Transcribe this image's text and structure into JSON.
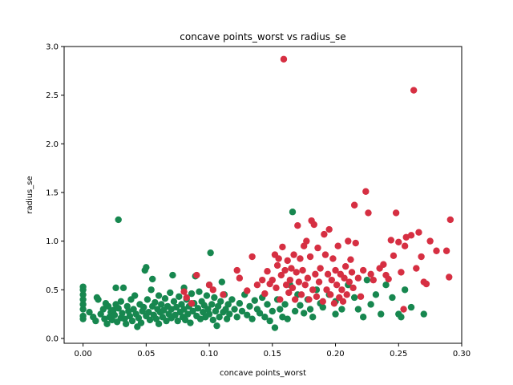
{
  "chart_data": {
    "type": "scatter",
    "title": "concave points_worst vs radius_se",
    "xlabel": "concave points_worst",
    "ylabel": "radius_se",
    "xlim": [
      -0.015,
      0.3
    ],
    "ylim": [
      -0.05,
      3.0
    ],
    "xticks": [
      "0.00",
      "0.05",
      "0.10",
      "0.15",
      "0.20",
      "0.25",
      "0.30"
    ],
    "yticks": [
      "0.0",
      "0.5",
      "1.0",
      "1.5",
      "2.0",
      "2.5",
      "3.0"
    ],
    "grid": false,
    "legend": "none",
    "series": [
      {
        "color": "#17874f",
        "points": [
          [
            0.0,
            0.2
          ],
          [
            0.0,
            0.23
          ],
          [
            0.0,
            0.3
          ],
          [
            0.0,
            0.35
          ],
          [
            0.0,
            0.4
          ],
          [
            0.0,
            0.45
          ],
          [
            0.0,
            0.5
          ],
          [
            0.0,
            0.53
          ],
          [
            0.005,
            0.27
          ],
          [
            0.008,
            0.22
          ],
          [
            0.01,
            0.18
          ],
          [
            0.011,
            0.42
          ],
          [
            0.012,
            0.4
          ],
          [
            0.014,
            0.25
          ],
          [
            0.016,
            0.3
          ],
          [
            0.017,
            0.2
          ],
          [
            0.018,
            0.36
          ],
          [
            0.019,
            0.15
          ],
          [
            0.02,
            0.33
          ],
          [
            0.021,
            0.22
          ],
          [
            0.022,
            0.27
          ],
          [
            0.023,
            0.19
          ],
          [
            0.024,
            0.29
          ],
          [
            0.025,
            0.24
          ],
          [
            0.026,
            0.52
          ],
          [
            0.026,
            0.35
          ],
          [
            0.027,
            0.17
          ],
          [
            0.028,
            0.31
          ],
          [
            0.028,
            1.22
          ],
          [
            0.03,
            0.21
          ],
          [
            0.03,
            0.38
          ],
          [
            0.031,
            0.26
          ],
          [
            0.032,
            0.52
          ],
          [
            0.033,
            0.2
          ],
          [
            0.034,
            0.15
          ],
          [
            0.035,
            0.33
          ],
          [
            0.036,
            0.28
          ],
          [
            0.037,
            0.23
          ],
          [
            0.038,
            0.4
          ],
          [
            0.039,
            0.18
          ],
          [
            0.04,
            0.3
          ],
          [
            0.041,
            0.44
          ],
          [
            0.042,
            0.25
          ],
          [
            0.043,
            0.12
          ],
          [
            0.044,
            0.21
          ],
          [
            0.045,
            0.35
          ],
          [
            0.046,
            0.16
          ],
          [
            0.047,
            0.28
          ],
          [
            0.048,
            0.32
          ],
          [
            0.049,
            0.7
          ],
          [
            0.05,
            0.73
          ],
          [
            0.05,
            0.23
          ],
          [
            0.051,
            0.4
          ],
          [
            0.052,
            0.27
          ],
          [
            0.053,
            0.19
          ],
          [
            0.054,
            0.5
          ],
          [
            0.055,
            0.33
          ],
          [
            0.055,
            0.61
          ],
          [
            0.056,
            0.24
          ],
          [
            0.057,
            0.37
          ],
          [
            0.058,
            0.2
          ],
          [
            0.059,
            0.3
          ],
          [
            0.06,
            0.44
          ],
          [
            0.06,
            0.15
          ],
          [
            0.061,
            0.27
          ],
          [
            0.062,
            0.35
          ],
          [
            0.063,
            0.22
          ],
          [
            0.064,
            0.29
          ],
          [
            0.065,
            0.41
          ],
          [
            0.066,
            0.18
          ],
          [
            0.067,
            0.33
          ],
          [
            0.068,
            0.25
          ],
          [
            0.069,
            0.47
          ],
          [
            0.07,
            0.3
          ],
          [
            0.07,
            0.21
          ],
          [
            0.071,
            0.65
          ],
          [
            0.072,
            0.38
          ],
          [
            0.073,
            0.24
          ],
          [
            0.074,
            0.32
          ],
          [
            0.075,
            0.18
          ],
          [
            0.076,
            0.43
          ],
          [
            0.077,
            0.27
          ],
          [
            0.078,
            0.35
          ],
          [
            0.079,
            0.22
          ],
          [
            0.08,
            0.52
          ],
          [
            0.08,
            0.3
          ],
          [
            0.081,
            0.19
          ],
          [
            0.082,
            0.4
          ],
          [
            0.083,
            0.25
          ],
          [
            0.084,
            0.33
          ],
          [
            0.085,
            0.16
          ],
          [
            0.086,
            0.46
          ],
          [
            0.087,
            0.28
          ],
          [
            0.088,
            0.36
          ],
          [
            0.089,
            0.64
          ],
          [
            0.09,
            0.23
          ],
          [
            0.091,
            0.31
          ],
          [
            0.092,
            0.48
          ],
          [
            0.093,
            0.2
          ],
          [
            0.094,
            0.38
          ],
          [
            0.095,
            0.27
          ],
          [
            0.096,
            0.34
          ],
          [
            0.097,
            0.22
          ],
          [
            0.098,
            0.44
          ],
          [
            0.099,
            0.3
          ],
          [
            0.1,
            0.25
          ],
          [
            0.1,
            0.55
          ],
          [
            0.101,
            0.88
          ],
          [
            0.102,
            0.35
          ],
          [
            0.103,
            0.19
          ],
          [
            0.104,
            0.42
          ],
          [
            0.105,
            0.28
          ],
          [
            0.106,
            0.13
          ],
          [
            0.107,
            0.33
          ],
          [
            0.108,
            0.22
          ],
          [
            0.109,
            0.38
          ],
          [
            0.11,
            0.58
          ],
          [
            0.111,
            0.27
          ],
          [
            0.112,
            0.45
          ],
          [
            0.113,
            0.3
          ],
          [
            0.114,
            0.2
          ],
          [
            0.115,
            0.35
          ],
          [
            0.116,
            0.25
          ],
          [
            0.118,
            0.4
          ],
          [
            0.12,
            0.3
          ],
          [
            0.122,
            0.22
          ],
          [
            0.124,
            0.36
          ],
          [
            0.126,
            0.28
          ],
          [
            0.128,
            0.45
          ],
          [
            0.13,
            0.24
          ],
          [
            0.132,
            0.33
          ],
          [
            0.134,
            0.2
          ],
          [
            0.136,
            0.39
          ],
          [
            0.138,
            0.3
          ],
          [
            0.14,
            0.26
          ],
          [
            0.142,
            0.42
          ],
          [
            0.144,
            0.22
          ],
          [
            0.146,
            0.35
          ],
          [
            0.148,
            0.18
          ],
          [
            0.15,
            0.28
          ],
          [
            0.152,
            0.11
          ],
          [
            0.154,
            0.4
          ],
          [
            0.156,
            0.3
          ],
          [
            0.158,
            0.22
          ],
          [
            0.16,
            0.35
          ],
          [
            0.162,
            0.2
          ],
          [
            0.164,
            0.55
          ],
          [
            0.166,
            1.3
          ],
          [
            0.168,
            0.28
          ],
          [
            0.17,
            0.45
          ],
          [
            0.172,
            0.34
          ],
          [
            0.175,
            0.26
          ],
          [
            0.178,
            0.4
          ],
          [
            0.18,
            0.3
          ],
          [
            0.182,
            0.22
          ],
          [
            0.185,
            0.5
          ],
          [
            0.188,
            0.36
          ],
          [
            0.19,
            0.32
          ],
          [
            0.195,
            0.45
          ],
          [
            0.2,
            0.25
          ],
          [
            0.2,
            0.38
          ],
          [
            0.205,
            0.3
          ],
          [
            0.21,
            0.55
          ],
          [
            0.215,
            0.42
          ],
          [
            0.218,
            0.3
          ],
          [
            0.222,
            0.22
          ],
          [
            0.225,
            0.6
          ],
          [
            0.228,
            0.35
          ],
          [
            0.232,
            0.45
          ],
          [
            0.236,
            0.25
          ],
          [
            0.24,
            0.55
          ],
          [
            0.245,
            0.42
          ],
          [
            0.25,
            0.25
          ],
          [
            0.252,
            0.22
          ],
          [
            0.255,
            0.5
          ],
          [
            0.26,
            0.32
          ],
          [
            0.27,
            0.25
          ]
        ]
      },
      {
        "color": "#d62f42",
        "points": [
          [
            0.08,
            0.48
          ],
          [
            0.082,
            0.42
          ],
          [
            0.086,
            0.36
          ],
          [
            0.09,
            0.65
          ],
          [
            0.1,
            0.55
          ],
          [
            0.103,
            0.5
          ],
          [
            0.111,
            0.45
          ],
          [
            0.122,
            0.7
          ],
          [
            0.124,
            0.62
          ],
          [
            0.13,
            0.49
          ],
          [
            0.134,
            0.84
          ],
          [
            0.138,
            0.55
          ],
          [
            0.142,
            0.6
          ],
          [
            0.144,
            0.46
          ],
          [
            0.146,
            0.69
          ],
          [
            0.148,
            0.56
          ],
          [
            0.15,
            0.6
          ],
          [
            0.152,
            0.86
          ],
          [
            0.153,
            0.52
          ],
          [
            0.154,
            0.75
          ],
          [
            0.155,
            0.82
          ],
          [
            0.156,
            0.4
          ],
          [
            0.157,
            0.65
          ],
          [
            0.158,
            0.94
          ],
          [
            0.159,
            2.87
          ],
          [
            0.16,
            0.7
          ],
          [
            0.161,
            0.55
          ],
          [
            0.162,
            0.8
          ],
          [
            0.163,
            0.47
          ],
          [
            0.164,
            0.6
          ],
          [
            0.165,
            0.72
          ],
          [
            0.166,
            0.52
          ],
          [
            0.167,
            0.86
          ],
          [
            0.168,
            0.4
          ],
          [
            0.169,
            0.68
          ],
          [
            0.17,
            1.16
          ],
          [
            0.171,
            0.58
          ],
          [
            0.172,
            0.82
          ],
          [
            0.173,
            0.45
          ],
          [
            0.174,
            0.7
          ],
          [
            0.175,
            0.95
          ],
          [
            0.176,
            0.55
          ],
          [
            0.177,
            1.0
          ],
          [
            0.178,
            0.62
          ],
          [
            0.179,
            0.4
          ],
          [
            0.18,
            0.84
          ],
          [
            0.181,
            1.21
          ],
          [
            0.182,
            0.5
          ],
          [
            0.183,
            1.17
          ],
          [
            0.184,
            0.66
          ],
          [
            0.185,
            0.43
          ],
          [
            0.186,
            0.93
          ],
          [
            0.187,
            0.58
          ],
          [
            0.188,
            0.72
          ],
          [
            0.19,
            0.38
          ],
          [
            0.191,
            1.07
          ],
          [
            0.192,
            0.86
          ],
          [
            0.193,
            0.5
          ],
          [
            0.194,
            0.66
          ],
          [
            0.195,
            1.12
          ],
          [
            0.196,
            0.45
          ],
          [
            0.197,
            0.6
          ],
          [
            0.198,
            0.82
          ],
          [
            0.199,
            0.36
          ],
          [
            0.2,
            0.7
          ],
          [
            0.201,
            0.55
          ],
          [
            0.202,
            0.95
          ],
          [
            0.203,
            0.42
          ],
          [
            0.204,
            0.66
          ],
          [
            0.205,
            0.5
          ],
          [
            0.206,
            0.38
          ],
          [
            0.207,
            0.62
          ],
          [
            0.208,
            0.74
          ],
          [
            0.209,
            0.45
          ],
          [
            0.21,
            1.0
          ],
          [
            0.211,
            0.58
          ],
          [
            0.212,
            0.81
          ],
          [
            0.213,
            0.68
          ],
          [
            0.214,
            0.52
          ],
          [
            0.215,
            1.37
          ],
          [
            0.216,
            0.98
          ],
          [
            0.218,
            0.62
          ],
          [
            0.22,
            0.43
          ],
          [
            0.222,
            0.7
          ],
          [
            0.224,
            1.51
          ],
          [
            0.226,
            1.29
          ],
          [
            0.228,
            0.66
          ],
          [
            0.23,
            0.6
          ],
          [
            0.235,
            0.72
          ],
          [
            0.238,
            0.76
          ],
          [
            0.24,
            0.65
          ],
          [
            0.242,
            0.61
          ],
          [
            0.244,
            1.01
          ],
          [
            0.246,
            0.85
          ],
          [
            0.248,
            1.29
          ],
          [
            0.25,
            0.99
          ],
          [
            0.252,
            0.68
          ],
          [
            0.254,
            0.3
          ],
          [
            0.255,
            0.95
          ],
          [
            0.256,
            1.04
          ],
          [
            0.26,
            1.06
          ],
          [
            0.262,
            2.55
          ],
          [
            0.264,
            0.72
          ],
          [
            0.266,
            1.09
          ],
          [
            0.268,
            0.84
          ],
          [
            0.27,
            0.58
          ],
          [
            0.272,
            0.56
          ],
          [
            0.275,
            1.0
          ],
          [
            0.28,
            0.9
          ],
          [
            0.288,
            0.9
          ],
          [
            0.29,
            0.63
          ],
          [
            0.291,
            1.22
          ]
        ]
      }
    ]
  }
}
